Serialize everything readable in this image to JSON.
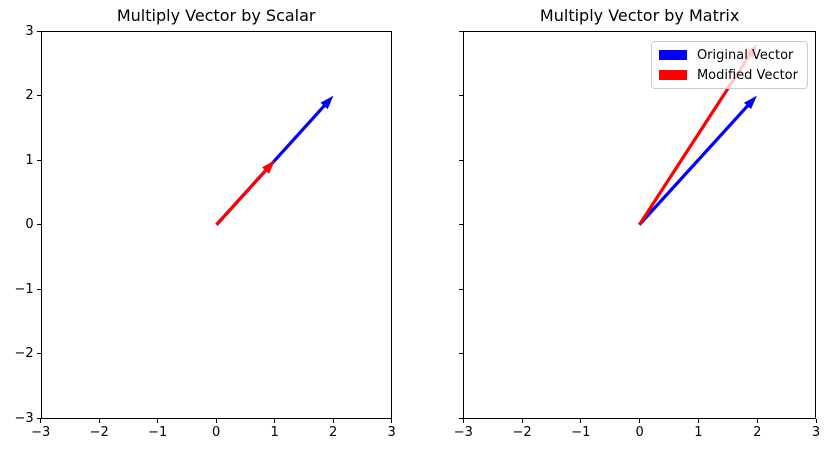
{
  "figure": {
    "background": "#ffffff",
    "text_color": "#000000",
    "spine_color": "#000000",
    "legend_border_color": "#cccccc"
  },
  "chart_data": [
    {
      "type": "quiver",
      "title": "Multiply Vector by Scalar",
      "xlim": [
        -3,
        3
      ],
      "ylim": [
        -3,
        3
      ],
      "xticks": [
        -3,
        -2,
        -1,
        0,
        1,
        2,
        3
      ],
      "yticks": [
        -3,
        -2,
        -1,
        0,
        1,
        2,
        3
      ],
      "xtick_labels": [
        "−3",
        "−2",
        "−1",
        "0",
        "1",
        "2",
        "3"
      ],
      "ytick_labels": [
        "−3",
        "−2",
        "−1",
        "0",
        "1",
        "2",
        "3"
      ],
      "grid": false,
      "vectors": [
        {
          "name": "Original Vector",
          "color": "#0000ff",
          "tail": [
            0,
            0
          ],
          "tip": [
            2,
            2
          ]
        },
        {
          "name": "Modified Vector",
          "color": "#ff0000",
          "tail": [
            0,
            0
          ],
          "tip": [
            1,
            1
          ]
        }
      ]
    },
    {
      "type": "quiver",
      "title": "Multiply Vector by Matrix",
      "xlim": [
        -3,
        3
      ],
      "ylim": [
        -3,
        3
      ],
      "xticks": [
        -3,
        -2,
        -1,
        0,
        1,
        2,
        3
      ],
      "yticks": [
        -3,
        -2,
        -1,
        0,
        1,
        2,
        3
      ],
      "xtick_labels": [
        "−3",
        "−2",
        "−1",
        "0",
        "1",
        "2",
        "3"
      ],
      "ytick_labels": [],
      "grid": false,
      "vectors": [
        {
          "name": "Original Vector",
          "color": "#0000ff",
          "tail": [
            0,
            0
          ],
          "tip": [
            2,
            2
          ]
        },
        {
          "name": "Modified Vector",
          "color": "#ff0000",
          "tail": [
            0,
            0
          ],
          "tip": [
            2,
            2.8
          ]
        }
      ],
      "legend": {
        "position": "upper right",
        "entries": [
          {
            "label": "Original Vector",
            "color": "#0000ff"
          },
          {
            "label": "Modified Vector",
            "color": "#ff0000"
          }
        ]
      }
    }
  ]
}
